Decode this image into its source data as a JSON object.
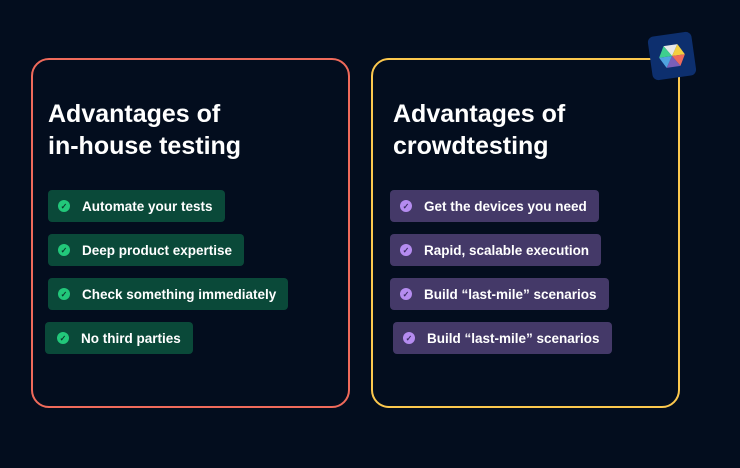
{
  "left": {
    "title_line1": "Advantages of",
    "title_line2": "in-house testing",
    "border_color": "#ef6a5b",
    "items": [
      "Automate your tests",
      "Deep product expertise",
      "Check something immediately",
      "No third parties"
    ]
  },
  "right": {
    "title_line1": "Advantages of",
    "title_line2": "crowdtesting",
    "border_color": "#fcc84e",
    "items": [
      "Get the devices you need",
      "Rapid, scalable execution",
      "Build “last-mile” scenarios",
      "Build “last-mile” scenarios"
    ]
  },
  "icons": {
    "check": "check-circle-icon",
    "logo": "hexagon-logo-icon"
  }
}
